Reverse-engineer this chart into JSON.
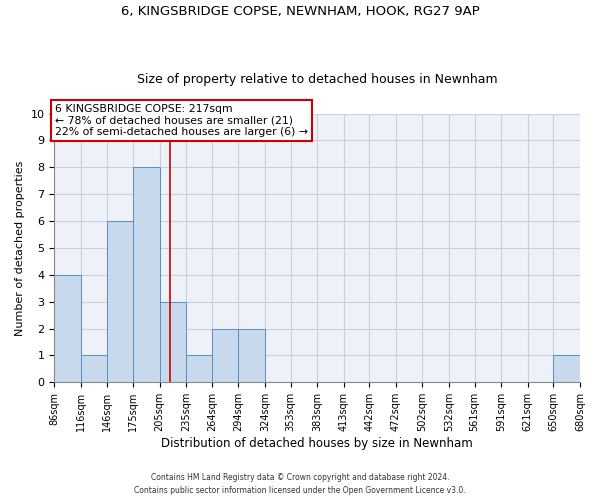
{
  "title": "6, KINGSBRIDGE COPSE, NEWNHAM, HOOK, RG27 9AP",
  "subtitle": "Size of property relative to detached houses in Newnham",
  "xlabel": "Distribution of detached houses by size in Newnham",
  "ylabel": "Number of detached properties",
  "bin_edges": [
    86,
    116,
    146,
    175,
    205,
    235,
    264,
    294,
    324,
    353,
    383,
    413,
    442,
    472,
    502,
    532,
    561,
    591,
    621,
    650,
    680
  ],
  "bar_heights": [
    4,
    1,
    6,
    8,
    3,
    1,
    2,
    2,
    0,
    0,
    0,
    0,
    0,
    0,
    0,
    0,
    0,
    0,
    0,
    1
  ],
  "bar_color": "#c9d9ed",
  "bar_edge_color": "#5a8fc2",
  "grid_color": "#c8d0e0",
  "bg_color": "#eef2f8",
  "vline_x": 217,
  "vline_color": "#cc0000",
  "annotation_line1": "6 KINGSBRIDGE COPSE: 217sqm",
  "annotation_line2": "← 78% of detached houses are smaller (21)",
  "annotation_line3": "22% of semi-detached houses are larger (6) →",
  "annotation_box_color": "#cc0000",
  "ylim": [
    0,
    10
  ],
  "yticks": [
    0,
    1,
    2,
    3,
    4,
    5,
    6,
    7,
    8,
    9,
    10
  ],
  "tick_labels": [
    "86sqm",
    "116sqm",
    "146sqm",
    "175sqm",
    "205sqm",
    "235sqm",
    "264sqm",
    "294sqm",
    "324sqm",
    "353sqm",
    "383sqm",
    "413sqm",
    "442sqm",
    "472sqm",
    "502sqm",
    "532sqm",
    "561sqm",
    "591sqm",
    "621sqm",
    "650sqm",
    "680sqm"
  ],
  "footer_line1": "Contains HM Land Registry data © Crown copyright and database right 2024.",
  "footer_line2": "Contains public sector information licensed under the Open Government Licence v3.0."
}
